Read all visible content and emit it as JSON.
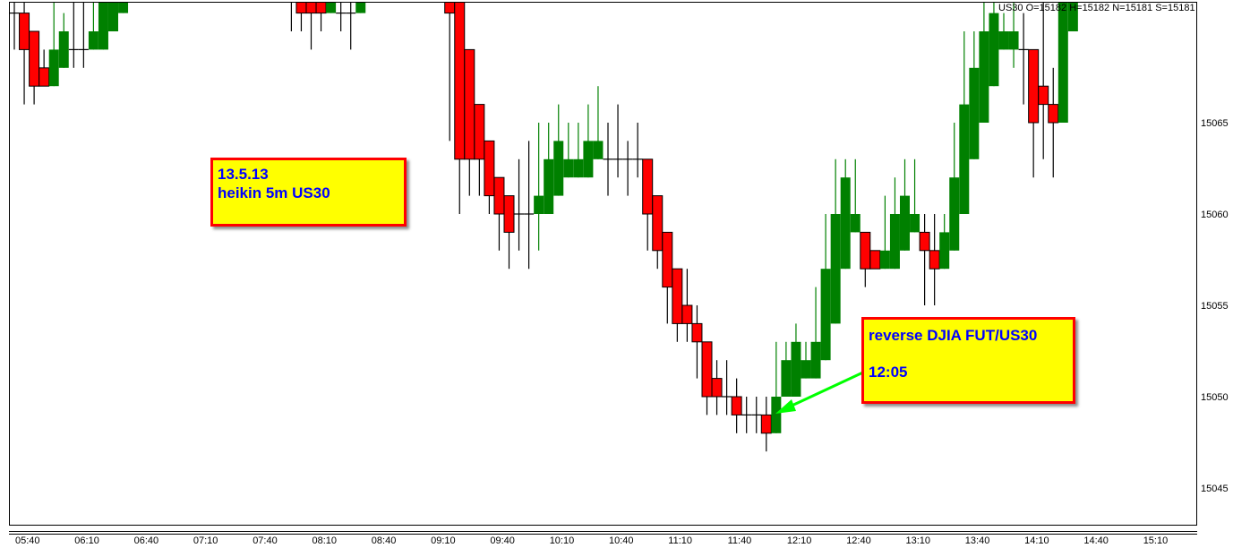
{
  "chart_data": {
    "type": "candlestick",
    "title": "",
    "header_info": "US30 O=15182 H=15182 N=15181 S=15181",
    "ylim": [
      15043,
      15071.5
    ],
    "y_ticks": [
      "15045",
      "15050",
      "15055",
      "15060",
      "15065"
    ],
    "x_ticks": [
      "05:40",
      "06:10",
      "06:40",
      "07:10",
      "07:40",
      "08:10",
      "08:40",
      "09:10",
      "09:40",
      "10:10",
      "10:40",
      "11:10",
      "11:40",
      "12:10",
      "12:40",
      "13:10",
      "13:40",
      "14:10",
      "14:40",
      "15:10"
    ],
    "columns": [
      "time",
      "open",
      "high",
      "low",
      "close"
    ],
    "candles": [
      [
        "05:40",
        15071,
        15072,
        15069,
        15071
      ],
      [
        "05:45",
        15071,
        15072,
        15066,
        15069
      ],
      [
        "05:50",
        15070,
        15070,
        15066,
        15067
      ],
      [
        "05:55",
        15068,
        15069,
        15067,
        15067
      ],
      [
        "06:00",
        15067,
        15072,
        15067,
        15069
      ],
      [
        "06:05",
        15068,
        15071,
        15068,
        15070
      ],
      [
        "06:10",
        15069,
        15072,
        15068,
        15069
      ],
      [
        "06:15",
        15069,
        15072,
        15068,
        15069
      ],
      [
        "06:20",
        15069,
        15072,
        15069,
        15070
      ],
      [
        "06:25",
        15069,
        15072,
        15069,
        15072
      ],
      [
        "06:30",
        15070,
        15072,
        15070,
        15072
      ],
      [
        "06:35",
        15071,
        15072,
        15071,
        15072
      ],
      [
        "08:00",
        15073,
        15073,
        15070,
        15072
      ],
      [
        "08:05",
        15072,
        15072,
        15070,
        15071
      ],
      [
        "08:10",
        15072,
        15072,
        15069,
        15071
      ],
      [
        "08:15",
        15072,
        15072,
        15070,
        15071
      ],
      [
        "08:20",
        15071,
        15072,
        15071,
        15072
      ],
      [
        "08:25",
        15071,
        15072,
        15070,
        15071
      ],
      [
        "08:30",
        15071,
        15072,
        15069,
        15071
      ],
      [
        "08:35",
        15071,
        15072,
        15071,
        15072
      ],
      [
        "09:20",
        15072,
        15073,
        15064,
        15071
      ],
      [
        "09:25",
        15072,
        15072,
        15060,
        15063
      ],
      [
        "09:30",
        15069,
        15069,
        15061,
        15063
      ],
      [
        "09:35",
        15066,
        15066,
        15061,
        15063
      ],
      [
        "09:40",
        15064,
        15064,
        15060,
        15061
      ],
      [
        "09:45",
        15062,
        15062,
        15058,
        15060
      ],
      [
        "09:50",
        15061,
        15061,
        15057,
        15059
      ],
      [
        "09:55",
        15060,
        15063,
        15058,
        15060
      ],
      [
        "10:00",
        15060,
        15064,
        15057,
        15060
      ],
      [
        "10:05",
        15060,
        15065,
        15058,
        15061
      ],
      [
        "10:10",
        15060,
        15065,
        15060,
        15063
      ],
      [
        "10:15",
        15061,
        15066,
        15061,
        15064
      ],
      [
        "10:20",
        15062,
        15065,
        15062,
        15063
      ],
      [
        "10:25",
        15062,
        15065,
        15062,
        15063
      ],
      [
        "10:30",
        15062,
        15066,
        15062,
        15064
      ],
      [
        "10:35",
        15063,
        15067,
        15063,
        15064
      ],
      [
        "10:40",
        15063,
        15065,
        15061,
        15063
      ],
      [
        "10:45",
        15063,
        15066,
        15062,
        15063
      ],
      [
        "10:50",
        15063,
        15064,
        15061,
        15063
      ],
      [
        "10:55",
        15063,
        15065,
        15062,
        15063
      ],
      [
        "11:00",
        15063,
        15063,
        15058,
        15060
      ],
      [
        "11:05",
        15061,
        15061,
        15057,
        15058
      ],
      [
        "11:10",
        15059,
        15059,
        15054,
        15056
      ],
      [
        "11:15",
        15057,
        15057,
        15053,
        15054
      ],
      [
        "11:20",
        15055,
        15057,
        15053,
        15054
      ],
      [
        "11:25",
        15054,
        15055,
        15051,
        15053
      ],
      [
        "11:30",
        15053,
        15053,
        15049,
        15050
      ],
      [
        "11:35",
        15051,
        15052,
        15049,
        15050
      ],
      [
        "11:40",
        15050,
        15052,
        15049,
        15050
      ],
      [
        "11:45",
        15050,
        15051,
        15048,
        15049
      ],
      [
        "11:50",
        15049,
        15050,
        15048,
        15049
      ],
      [
        "11:55",
        15049,
        15050,
        15048,
        15049
      ],
      [
        "12:00",
        15049,
        15050,
        15047,
        15048
      ],
      [
        "12:05",
        15048,
        15053,
        15048,
        15050
      ],
      [
        "12:10",
        15050,
        15053,
        15050,
        15052
      ],
      [
        "12:15",
        15050,
        15054,
        15050,
        15053
      ],
      [
        "12:20",
        15051,
        15053,
        15051,
        15052
      ],
      [
        "12:25",
        15051,
        15056,
        15051,
        15053
      ],
      [
        "12:30",
        15052,
        15060,
        15052,
        15057
      ],
      [
        "12:35",
        15054,
        15063,
        15054,
        15060
      ],
      [
        "12:40",
        15057,
        15063,
        15057,
        15062
      ],
      [
        "12:45",
        15059,
        15063,
        15059,
        15060
      ],
      [
        "12:50",
        15059,
        15059,
        15056,
        15057
      ],
      [
        "12:55",
        15058,
        15058,
        15057,
        15057
      ],
      [
        "13:00",
        15057,
        15061,
        15057,
        15058
      ],
      [
        "13:05",
        15057,
        15062,
        15057,
        15060
      ],
      [
        "13:10",
        15058,
        15063,
        15058,
        15061
      ],
      [
        "13:15",
        15059,
        15063,
        15059,
        15060
      ],
      [
        "13:20",
        15059,
        15060,
        15055,
        15058
      ],
      [
        "13:25",
        15058,
        15060,
        15055,
        15057
      ],
      [
        "13:30",
        15057,
        15060,
        15057,
        15059
      ],
      [
        "13:35",
        15058,
        15065,
        15058,
        15062
      ],
      [
        "13:40",
        15060,
        15070,
        15060,
        15066
      ],
      [
        "13:45",
        15063,
        15070,
        15063,
        15068
      ],
      [
        "13:50",
        15065,
        15072,
        15065,
        15070
      ],
      [
        "13:55",
        15067,
        15072,
        15067,
        15071
      ],
      [
        "14:00",
        15069,
        15071,
        15069,
        15070
      ],
      [
        "14:05",
        15069,
        15072,
        15068,
        15070
      ],
      [
        "14:10",
        15069,
        15071,
        15066,
        15069
      ],
      [
        "14:15",
        15069,
        15069,
        15062,
        15065
      ],
      [
        "14:20",
        15067,
        15072,
        15063,
        15066
      ],
      [
        "14:25",
        15066,
        15068,
        15062,
        15065
      ],
      [
        "14:30",
        15065,
        15072,
        15065,
        15072
      ],
      [
        "14:35",
        15070,
        15072,
        15070,
        15072
      ]
    ],
    "colors": {
      "bull": "#008000",
      "bear": "#ff0000",
      "wick_bear": "#000000",
      "annotation_bg": "#ffff00",
      "annotation_border": "#ff0000",
      "annotation_text": "#0000ff",
      "arrow": "#00ff00"
    },
    "annotations": [
      {
        "lines": [
          "13.5.13",
          "heikin 5m US30"
        ]
      },
      {
        "lines": [
          "reverse DJIA FUT/US30",
          "12:05"
        ],
        "arrow_to": "12:05"
      }
    ],
    "grid": false
  }
}
